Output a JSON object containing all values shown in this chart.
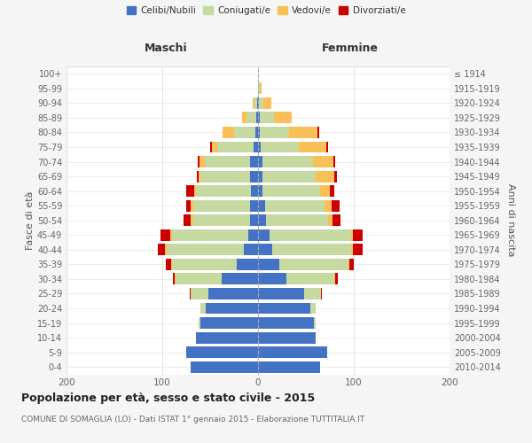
{
  "age_groups": [
    "0-4",
    "5-9",
    "10-14",
    "15-19",
    "20-24",
    "25-29",
    "30-34",
    "35-39",
    "40-44",
    "45-49",
    "50-54",
    "55-59",
    "60-64",
    "65-69",
    "70-74",
    "75-79",
    "80-84",
    "85-89",
    "90-94",
    "95-99",
    "100+"
  ],
  "birth_years": [
    "2010-2014",
    "2005-2009",
    "2000-2004",
    "1995-1999",
    "1990-1994",
    "1985-1989",
    "1980-1984",
    "1975-1979",
    "1970-1974",
    "1965-1969",
    "1960-1964",
    "1955-1959",
    "1950-1954",
    "1945-1949",
    "1940-1944",
    "1935-1939",
    "1930-1934",
    "1925-1929",
    "1920-1924",
    "1915-1919",
    "≤ 1914"
  ],
  "males_celibe": [
    70,
    75,
    65,
    60,
    55,
    52,
    38,
    22,
    15,
    10,
    8,
    8,
    7,
    8,
    8,
    5,
    3,
    2,
    1,
    0,
    0
  ],
  "males_coniugato": [
    0,
    0,
    0,
    2,
    5,
    18,
    48,
    68,
    80,
    80,
    60,
    60,
    58,
    52,
    48,
    38,
    22,
    10,
    3,
    0,
    0
  ],
  "males_vedovo": [
    0,
    0,
    0,
    0,
    0,
    0,
    1,
    1,
    2,
    2,
    2,
    2,
    2,
    2,
    5,
    5,
    12,
    5,
    2,
    0,
    0
  ],
  "males_divorziato": [
    0,
    0,
    0,
    0,
    0,
    1,
    2,
    5,
    8,
    10,
    8,
    5,
    8,
    2,
    2,
    2,
    0,
    0,
    0,
    0,
    0
  ],
  "females_nubile": [
    65,
    72,
    60,
    58,
    55,
    48,
    30,
    22,
    15,
    12,
    8,
    7,
    5,
    5,
    5,
    3,
    2,
    2,
    1,
    0,
    0
  ],
  "females_coniugata": [
    0,
    0,
    0,
    2,
    5,
    18,
    50,
    72,
    82,
    85,
    65,
    62,
    60,
    55,
    52,
    40,
    30,
    15,
    5,
    2,
    0
  ],
  "females_vedova": [
    0,
    0,
    0,
    0,
    0,
    0,
    1,
    1,
    2,
    2,
    5,
    8,
    10,
    20,
    22,
    28,
    30,
    18,
    8,
    2,
    0
  ],
  "females_divorziata": [
    0,
    0,
    0,
    0,
    0,
    1,
    2,
    5,
    10,
    10,
    8,
    8,
    5,
    2,
    2,
    2,
    2,
    0,
    0,
    0,
    0
  ],
  "color_celibe": "#4472C4",
  "color_coniugato": "#C5D9A1",
  "color_vedovo": "#FAC058",
  "color_divorziato": "#CC0000",
  "xlim": 200,
  "title": "Popolazione per età, sesso e stato civile - 2015",
  "subtitle": "COMUNE DI SOMAGLIA (LO) - Dati ISTAT 1° gennaio 2015 - Elaborazione TUTTITALIA.IT",
  "ylabel_left": "Fasce di età",
  "ylabel_right": "Anni di nascita",
  "label_maschi": "Maschi",
  "label_femmine": "Femmine",
  "bg_color": "#f5f5f5",
  "plot_bg": "#ffffff",
  "legend_labels": [
    "Celibi/Nubili",
    "Coniugati/e",
    "Vedovi/e",
    "Divorziati/e"
  ]
}
